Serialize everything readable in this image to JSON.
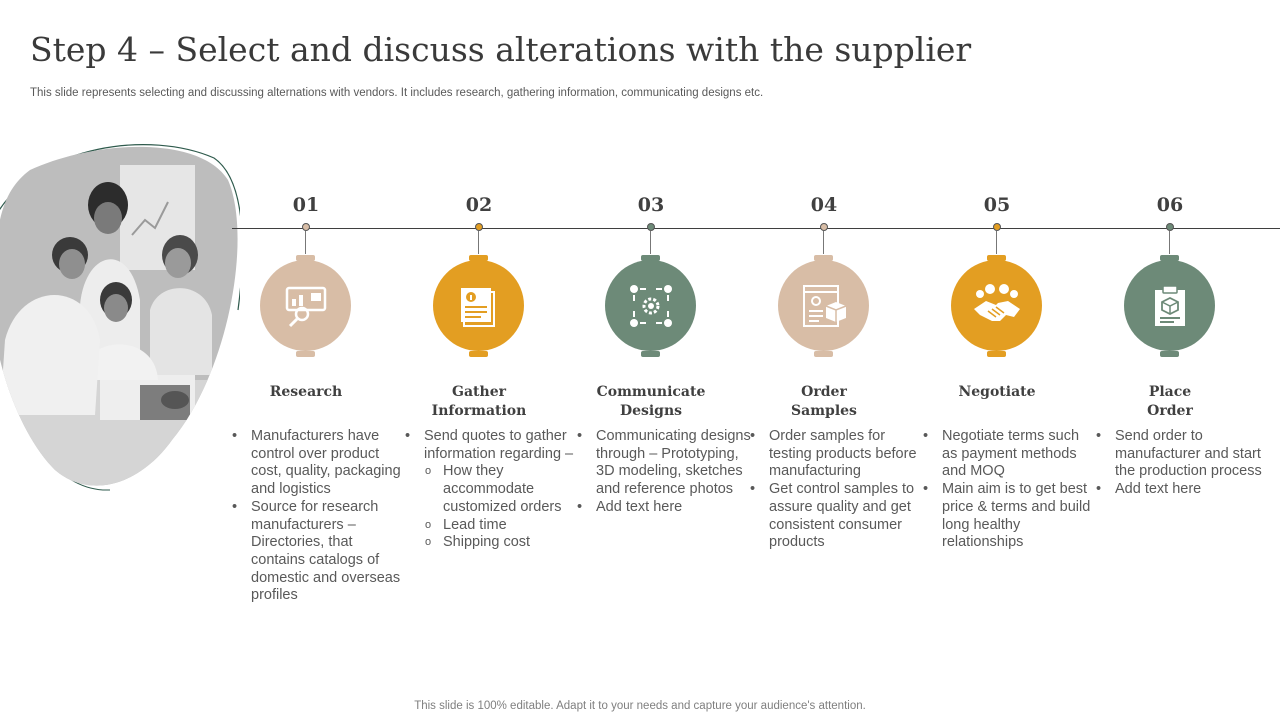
{
  "slide": {
    "title": "Step 4 – Select and discuss alterations with the supplier",
    "subtitle": "This slide represents selecting and discussing alternations with vendors. It includes research, gathering information, communicating designs etc.",
    "footer": "This slide is 100% editable. Adapt it to your needs and capture your audience's attention."
  },
  "colors": {
    "tan": "#d8bda6",
    "gold": "#e39e22",
    "green": "#6d8a78",
    "line": "#3f3f3f"
  },
  "steps": [
    {
      "number": "01",
      "heading": [
        "Research"
      ],
      "icon": "presentation-magnifier-icon",
      "color": "tan",
      "bullets": [
        "Manufacturers have control over product cost, quality, packaging and logistics",
        "Source for research manufacturers – Directories, that contains catalogs of domestic and overseas profiles"
      ]
    },
    {
      "number": "02",
      "heading": [
        "Gather",
        "Information"
      ],
      "icon": "info-document-icon",
      "color": "gold",
      "bullets": [
        "Send quotes to gather information regarding –"
      ],
      "subbullets": [
        "How they accommodate customized orders",
        "Lead time",
        "Shipping cost"
      ]
    },
    {
      "number": "03",
      "heading": [
        "Communicate",
        "Designs"
      ],
      "icon": "gear-people-network-icon",
      "color": "green",
      "bullets": [
        "Communicating designs through – Prototyping, 3D modeling, sketches and reference photos",
        "Add text here"
      ]
    },
    {
      "number": "04",
      "heading": [
        "Order",
        "Samples"
      ],
      "icon": "browser-box-icon",
      "color": "tan",
      "bullets": [
        "Order samples for testing products before manufacturing",
        "Get control samples to assure quality and get consistent consumer products"
      ]
    },
    {
      "number": "05",
      "heading": [
        "Negotiate"
      ],
      "icon": "handshake-icon",
      "color": "gold",
      "bullets": [
        "Negotiate terms such as payment methods and MOQ",
        "Main aim is to get best price & terms and build long healthy relationships"
      ]
    },
    {
      "number": "06",
      "heading": [
        "Place",
        "Order"
      ],
      "icon": "order-clipboard-box-icon",
      "color": "green",
      "bullets": [
        "Send order to manufacturer and start the production process",
        "Add text here"
      ]
    }
  ]
}
